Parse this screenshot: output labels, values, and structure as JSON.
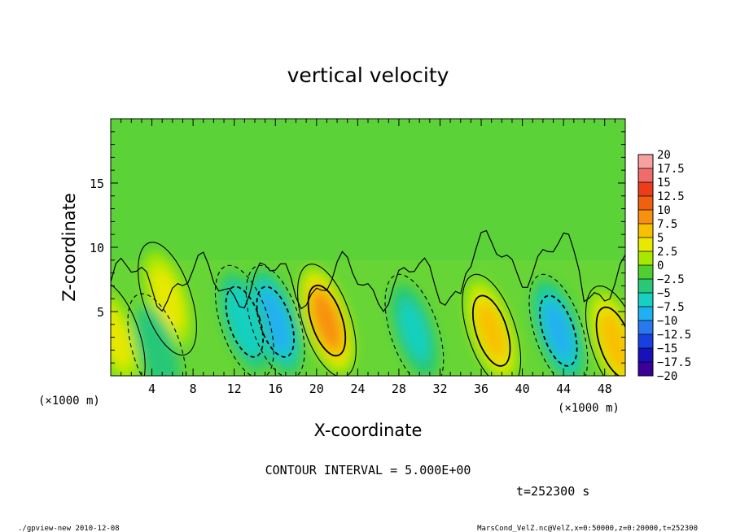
{
  "chart_data": {
    "type": "heatmap",
    "title": "vertical velocity",
    "xlabel": "X-coordinate",
    "ylabel": "Z-coordinate",
    "x_unit_left": "(×1000 m)",
    "x_unit_right": "(×1000 m)",
    "xlim": [
      0,
      50
    ],
    "ylim": [
      0,
      20
    ],
    "x_ticks": [
      4,
      8,
      12,
      16,
      20,
      24,
      28,
      32,
      36,
      40,
      44,
      48
    ],
    "y_ticks": [
      5,
      10,
      15
    ],
    "contour_interval_text": "CONTOUR INTERVAL = 5.000E+00",
    "time_text": "t=252300 s",
    "colorbar": {
      "labels": [
        "20",
        "17.5",
        "15",
        "12.5",
        "10",
        "7.5",
        "5",
        "2.5",
        "0",
        "−2.5",
        "−5",
        "−7.5",
        "−10",
        "−12.5",
        "−15",
        "−17.5",
        "−20"
      ],
      "colors": [
        "#f6a0a0",
        "#f06c6c",
        "#ec3c18",
        "#f06010",
        "#f89010",
        "#f8c000",
        "#e8e800",
        "#a8e800",
        "#50d030",
        "#28c878",
        "#18d0c0",
        "#20b0f0",
        "#2878f0",
        "#1840e0",
        "#1810b8",
        "#3c0098"
      ]
    },
    "features": [
      {
        "x": 21.0,
        "z": 4.3,
        "w": 12.0,
        "kind": "updraft"
      },
      {
        "x": 37.0,
        "z": 3.5,
        "w": 8.5,
        "kind": "updraft"
      },
      {
        "x": 49.0,
        "z": 2.6,
        "w": 9.0,
        "kind": "updraft"
      },
      {
        "x": 5.5,
        "z": 6.0,
        "w": 5.5,
        "kind": "updraft"
      },
      {
        "x": 0.5,
        "z": 3.0,
        "w": 5.0,
        "kind": "updraft"
      },
      {
        "x": 16.0,
        "z": 4.2,
        "w": -9.5,
        "kind": "downdraft"
      },
      {
        "x": 13.0,
        "z": 4.2,
        "w": -7.0,
        "kind": "downdraft"
      },
      {
        "x": 43.5,
        "z": 3.5,
        "w": -8.5,
        "kind": "downdraft"
      },
      {
        "x": 29.5,
        "z": 3.5,
        "w": -5.0,
        "kind": "downdraft"
      },
      {
        "x": 4.5,
        "z": 2.0,
        "w": -4.0,
        "kind": "downdraft"
      }
    ]
  },
  "footer": {
    "left": "./gpview-new  2010-12-08",
    "right": "MarsCond_VelZ.nc@VelZ,x=0:50000,z=0:20000,t=252300"
  }
}
